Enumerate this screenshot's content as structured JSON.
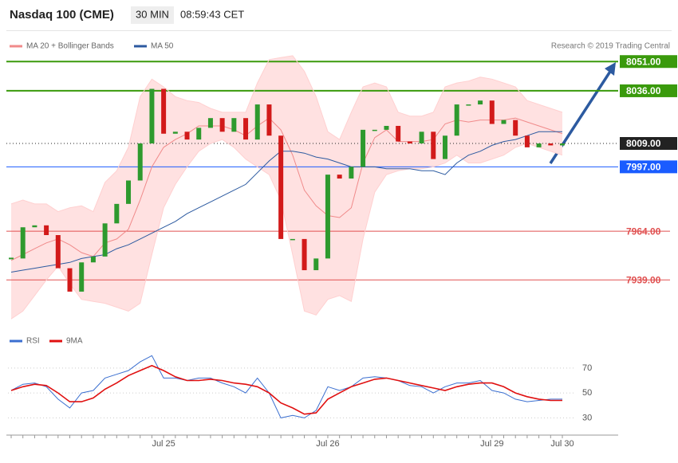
{
  "header": {
    "title": "Nasdaq 100 (CME)",
    "interval": "30 MIN",
    "time": "08:59:43 CET"
  },
  "chart_data": [
    {
      "type": "candlestick",
      "source": "Research © 2019 Trading Central",
      "up_color": "#2e9a2e",
      "down_color": "#d21a1a",
      "ylim": [
        7915,
        8056
      ],
      "close": [
        7950,
        7966,
        7967,
        7962,
        7945,
        7933,
        7948,
        7951,
        7968,
        7978,
        7990,
        8009,
        8037,
        8014,
        8015,
        8011,
        8017,
        8022,
        8015,
        8022,
        8011,
        8029,
        8013,
        7960,
        7960,
        7944,
        7950,
        7993,
        7991,
        7997,
        8016,
        8016,
        8018,
        8010,
        8009,
        8015,
        8001,
        8013,
        8029,
        8029,
        8031,
        8019,
        8021,
        8013,
        8007,
        8009,
        8008,
        8009
      ],
      "series": [
        {
          "name": "MA 20 + Bollinger Bands",
          "color": "#f08a8a",
          "band_color": "#ffe1e1",
          "values": [
            7949,
            7952,
            7955,
            7958,
            7960,
            7957,
            7953,
            7951,
            7958,
            7960,
            7965,
            7980,
            7997,
            8007,
            8011,
            8014,
            8018,
            8018,
            8018,
            8016,
            8013,
            8018,
            8022,
            8016,
            8003,
            7985,
            7977,
            7972,
            7971,
            7976,
            7999,
            8012,
            8016,
            8010,
            8010,
            8010,
            8011,
            8019,
            8021,
            8020,
            8021,
            8021,
            8021,
            8022,
            8020,
            8018,
            8016,
            8014
          ],
          "upper": [
            7978,
            7980,
            7978,
            7978,
            7974,
            7976,
            7977,
            7974,
            7989,
            7995,
            8007,
            8033,
            8042,
            8038,
            8033,
            8031,
            8030,
            8027,
            8025,
            8025,
            8025,
            8040,
            8052,
            8053,
            8054,
            8046,
            8033,
            8015,
            8011,
            8025,
            8038,
            8040,
            8038,
            8025,
            8023,
            8023,
            8025,
            8038,
            8040,
            8041,
            8043,
            8042,
            8040,
            8038,
            8031,
            8029,
            8027,
            8025
          ],
          "lower": [
            7919,
            7923,
            7931,
            7939,
            7946,
            7937,
            7929,
            7928,
            7927,
            7925,
            7923,
            7927,
            7952,
            7976,
            7988,
            7997,
            8005,
            8009,
            8011,
            8007,
            8001,
            7997,
            7993,
            7980,
            7952,
            7923,
            7921,
            7929,
            7931,
            7928,
            7960,
            7984,
            7993,
            7995,
            7996,
            7996,
            7997,
            7999,
            8003,
            7999,
            7999,
            8001,
            8003,
            8007,
            8009,
            8007,
            8005,
            8003
          ]
        },
        {
          "name": "MA 50",
          "color": "#2c5aa0",
          "values": [
            7943,
            7944,
            7945,
            7946,
            7947,
            7948,
            7950,
            7951,
            7952,
            7955,
            7957,
            7960,
            7963,
            7966,
            7969,
            7973,
            7976,
            7979,
            7982,
            7985,
            7988,
            7994,
            8000,
            8005,
            8005,
            8004,
            8002,
            8001,
            7999,
            7997,
            7997,
            7997,
            7996,
            7996,
            7996,
            7995,
            7995,
            7993,
            7999,
            8003,
            8005,
            8008,
            8010,
            8011,
            8013,
            8015,
            8015,
            8015
          ]
        }
      ],
      "levels": [
        {
          "value": 8051,
          "label": "8051.00",
          "color": "#3a9a0c",
          "boxed": true,
          "dotted": false
        },
        {
          "value": 8036,
          "label": "8036.00",
          "color": "#3a9a0c",
          "boxed": true,
          "dotted": false
        },
        {
          "value": 8009,
          "label": "8009.00",
          "color": "#222222",
          "boxed": true,
          "dotted": true
        },
        {
          "value": 7997,
          "label": "7997.00",
          "color": "#1a5cff",
          "boxed": true,
          "dotted": false
        },
        {
          "value": 7964,
          "label": "7964.00",
          "color": "#e05050",
          "boxed": false,
          "dotted": false
        },
        {
          "value": 7939,
          "label": "7939.00",
          "color": "#e05050",
          "boxed": false,
          "dotted": false
        }
      ]
    },
    {
      "type": "line",
      "ylim": [
        20,
        84
      ],
      "yticks": [
        30,
        50,
        70
      ],
      "categories": [
        null,
        null,
        null,
        null,
        null,
        null,
        null,
        null,
        null,
        null,
        null,
        null,
        null,
        "Jul 25",
        null,
        null,
        null,
        null,
        null,
        null,
        null,
        null,
        null,
        null,
        null,
        null,
        null,
        "Jul 26",
        null,
        null,
        null,
        null,
        null,
        null,
        null,
        null,
        null,
        null,
        null,
        null,
        null,
        "Jul 29",
        null,
        null,
        null,
        null,
        null,
        "Jul 30"
      ],
      "series": [
        {
          "name": "RSI",
          "color": "#3b6fd0",
          "values": [
            52,
            57,
            58,
            55,
            45,
            38,
            50,
            52,
            62,
            65,
            68,
            75,
            80,
            62,
            62,
            60,
            62,
            62,
            58,
            55,
            50,
            62,
            50,
            30,
            32,
            30,
            36,
            55,
            52,
            55,
            62,
            63,
            62,
            60,
            56,
            55,
            50,
            55,
            58,
            58,
            60,
            52,
            50,
            45,
            43,
            44,
            45,
            45
          ]
        },
        {
          "name": "9MA",
          "color": "#e01010",
          "values": [
            52,
            55,
            57,
            56,
            50,
            43,
            43,
            46,
            53,
            58,
            64,
            68,
            72,
            68,
            63,
            60,
            60,
            61,
            60,
            58,
            57,
            55,
            50,
            42,
            38,
            33,
            34,
            45,
            50,
            55,
            58,
            61,
            62,
            60,
            58,
            56,
            54,
            52,
            55,
            57,
            58,
            58,
            55,
            50,
            47,
            45,
            44,
            44
          ]
        }
      ]
    }
  ]
}
